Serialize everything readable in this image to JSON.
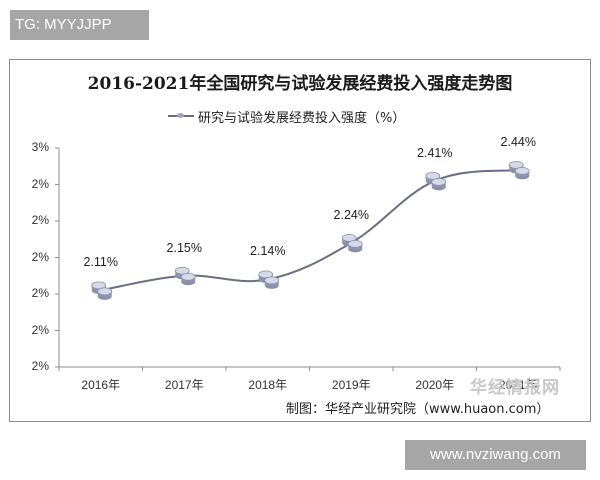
{
  "watermark_top": "TG: MYYJJPP",
  "watermark_bottom": "www.nvziwang.com",
  "watermark_logo": "华经情报网",
  "source": "制图：华经产业研究院（www.huaon.com）",
  "colors": {
    "line": "#6a6f86",
    "marker": "#a0a6c0",
    "axis": "#8c8c8c",
    "frame": "#8c8c8c"
  },
  "chart_data": {
    "type": "line",
    "title": "2016-2021年全国研究与试验发展经费投入强度走势图",
    "xlabel": "",
    "ylabel": "",
    "categories": [
      "2016年",
      "2017年",
      "2018年",
      "2019年",
      "2020年",
      "2021年"
    ],
    "series": [
      {
        "name": "研究与试验发展经费投入强度（%）",
        "values": [
          2.11,
          2.15,
          2.14,
          2.24,
          2.41,
          2.44
        ],
        "data_labels": [
          "2.11%",
          "2.15%",
          "2.14%",
          "2.24%",
          "2.41%",
          "2.44%"
        ]
      }
    ],
    "y_tick_labels": [
      "3%",
      "2%",
      "2%",
      "2%",
      "2%",
      "2%",
      "2%"
    ],
    "ylim": [
      1.9,
      2.5
    ],
    "grid": false,
    "smooth": true,
    "legend_position": "top"
  }
}
